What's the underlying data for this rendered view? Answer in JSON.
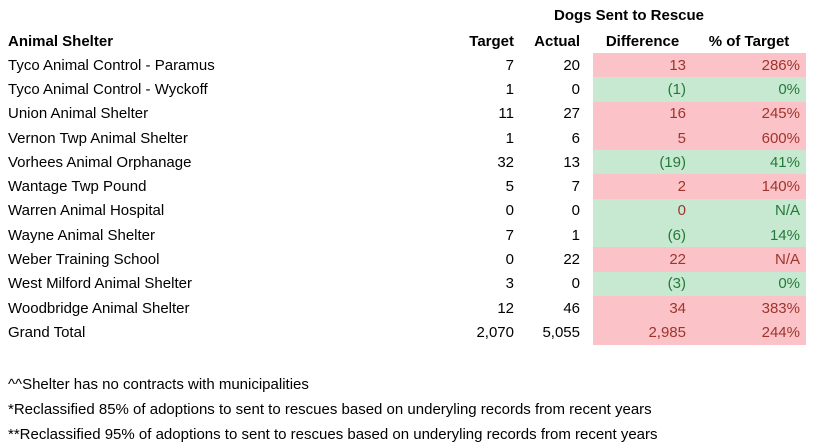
{
  "table": {
    "title": "Dogs Sent to Rescue",
    "columns": [
      "Animal Shelter",
      "Target",
      "Actual",
      "Difference",
      "% of Target"
    ],
    "colors": {
      "red_fill": "#fbc3c8",
      "green_fill": "#c8e9d1",
      "red_text": "#9e342c",
      "green_text": "#237a38"
    },
    "rows": [
      {
        "shelter": "Tyco Animal Control - Paramus",
        "target": "7",
        "actual": "20",
        "difference": "13",
        "pct": "286%",
        "fill": "red",
        "diff_text": "red",
        "pct_text": "red"
      },
      {
        "shelter": "Tyco Animal Control - Wyckoff",
        "target": "1",
        "actual": "0",
        "difference": "(1)",
        "pct": "0%",
        "fill": "green",
        "diff_text": "green",
        "pct_text": "green"
      },
      {
        "shelter": "Union Animal Shelter",
        "target": "11",
        "actual": "27",
        "difference": "16",
        "pct": "245%",
        "fill": "red",
        "diff_text": "red",
        "pct_text": "red"
      },
      {
        "shelter": "Vernon Twp Animal Shelter",
        "target": "1",
        "actual": "6",
        "difference": "5",
        "pct": "600%",
        "fill": "red",
        "diff_text": "red",
        "pct_text": "red"
      },
      {
        "shelter": "Vorhees Animal Orphanage",
        "target": "32",
        "actual": "13",
        "difference": "(19)",
        "pct": "41%",
        "fill": "green",
        "diff_text": "green",
        "pct_text": "green"
      },
      {
        "shelter": "Wantage Twp Pound",
        "target": "5",
        "actual": "7",
        "difference": "2",
        "pct": "140%",
        "fill": "red",
        "diff_text": "red",
        "pct_text": "red"
      },
      {
        "shelter": "Warren Animal Hospital",
        "target": "0",
        "actual": "0",
        "difference": "0",
        "pct": "N/A",
        "fill": "green",
        "diff_text": "red",
        "pct_text": "green"
      },
      {
        "shelter": "Wayne Animal Shelter",
        "target": "7",
        "actual": "1",
        "difference": "(6)",
        "pct": "14%",
        "fill": "green",
        "diff_text": "green",
        "pct_text": "green"
      },
      {
        "shelter": "Weber Training School",
        "target": "0",
        "actual": "22",
        "difference": "22",
        "pct": "N/A",
        "fill": "red",
        "diff_text": "red",
        "pct_text": "red"
      },
      {
        "shelter": "West Milford Animal Shelter",
        "target": "3",
        "actual": "0",
        "difference": "(3)",
        "pct": "0%",
        "fill": "green",
        "diff_text": "green",
        "pct_text": "green"
      },
      {
        "shelter": "Woodbridge Animal Shelter",
        "target": "12",
        "actual": "46",
        "difference": "34",
        "pct": "383%",
        "fill": "red",
        "diff_text": "red",
        "pct_text": "red"
      },
      {
        "shelter": "Grand Total",
        "target": "2,070",
        "actual": "5,055",
        "difference": "2,985",
        "pct": "244%",
        "fill": "red",
        "diff_text": "red",
        "pct_text": "red"
      }
    ]
  },
  "footnotes": [
    "^^Shelter has no contracts with municipalities",
    "*Reclassified 85% of adoptions to sent to rescues based on underyling records from recent years",
    "**Reclassified 95% of adoptions to sent to rescues based on underyling records from recent years"
  ]
}
